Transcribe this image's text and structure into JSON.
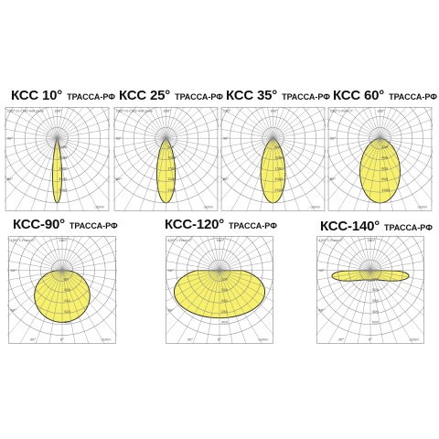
{
  "brand": "ТРАССА-РФ",
  "colors": {
    "lobe_fill": "#f7f06a",
    "lobe_stroke": "#2b2b2b",
    "grid": "#8a8a8a"
  },
  "diagrams": [
    {
      "id": "kss-10",
      "title": "КСС 10°",
      "beam_deg": 10,
      "angle_labels": [
        "120°",
        "90°",
        "60°",
        "180°"
      ],
      "ring_labels": [
        "1000",
        "2000",
        "3000",
        "4000",
        "5000"
      ],
      "legend": "C0-C180 Half plane",
      "units": "cd/klm"
    },
    {
      "id": "kss-25",
      "title": "КСС 25°",
      "beam_deg": 25,
      "angle_labels": [
        "120°",
        "90°",
        "60°",
        "180°"
      ],
      "ring_labels": [
        "500",
        "1000",
        "1500",
        "2000",
        "2500"
      ],
      "legend": "C0-C180 Half plane",
      "units": "cd/klm"
    },
    {
      "id": "kss-35",
      "title": "КСС 35°",
      "beam_deg": 35,
      "angle_labels": [
        "120°",
        "90°",
        "60°",
        "180°"
      ],
      "ring_labels": [
        "500",
        "1000",
        "1500",
        "2000",
        "2500"
      ],
      "legend": "",
      "units": "cd/klm"
    },
    {
      "id": "kss-60",
      "title": "КСС 60°",
      "beam_deg": 60,
      "angle_labels": [
        "120°",
        "90°",
        "60°",
        "180°"
      ],
      "ring_labels": [
        "200",
        "400",
        "600",
        "800",
        "1000"
      ],
      "legend": "C-Plane 0°",
      "units": "cd/klm"
    },
    {
      "id": "kss-90",
      "title": "КСС-90°",
      "beam_deg": 90,
      "angle_labels": [
        "120°",
        "90°",
        "60°",
        "180°",
        "30°",
        "0°"
      ],
      "ring_labels": [
        "80",
        "160",
        "240",
        "320",
        "400"
      ],
      "legend": "C-Plane 0°",
      "units": "cd/klm"
    },
    {
      "id": "kss-120",
      "title": "КСС-120°",
      "beam_deg": 120,
      "angle_labels": [
        "120°",
        "90°",
        "60°",
        "180°",
        "30°",
        "0°"
      ],
      "ring_labels": [
        "100",
        "150",
        "200",
        "250",
        "300"
      ],
      "legend": "C-Plane 0°",
      "units": "cd/klm"
    },
    {
      "id": "kss-140",
      "title": "КСС-140°",
      "beam_deg": 140,
      "angle_labels": [
        "120°",
        "90°",
        "60°",
        "180°",
        "30°",
        "0°"
      ],
      "ring_labels": [
        "100",
        "200",
        "300",
        "400",
        "500"
      ],
      "legend": "C-Plane 0°",
      "units": "cd/klm"
    }
  ]
}
